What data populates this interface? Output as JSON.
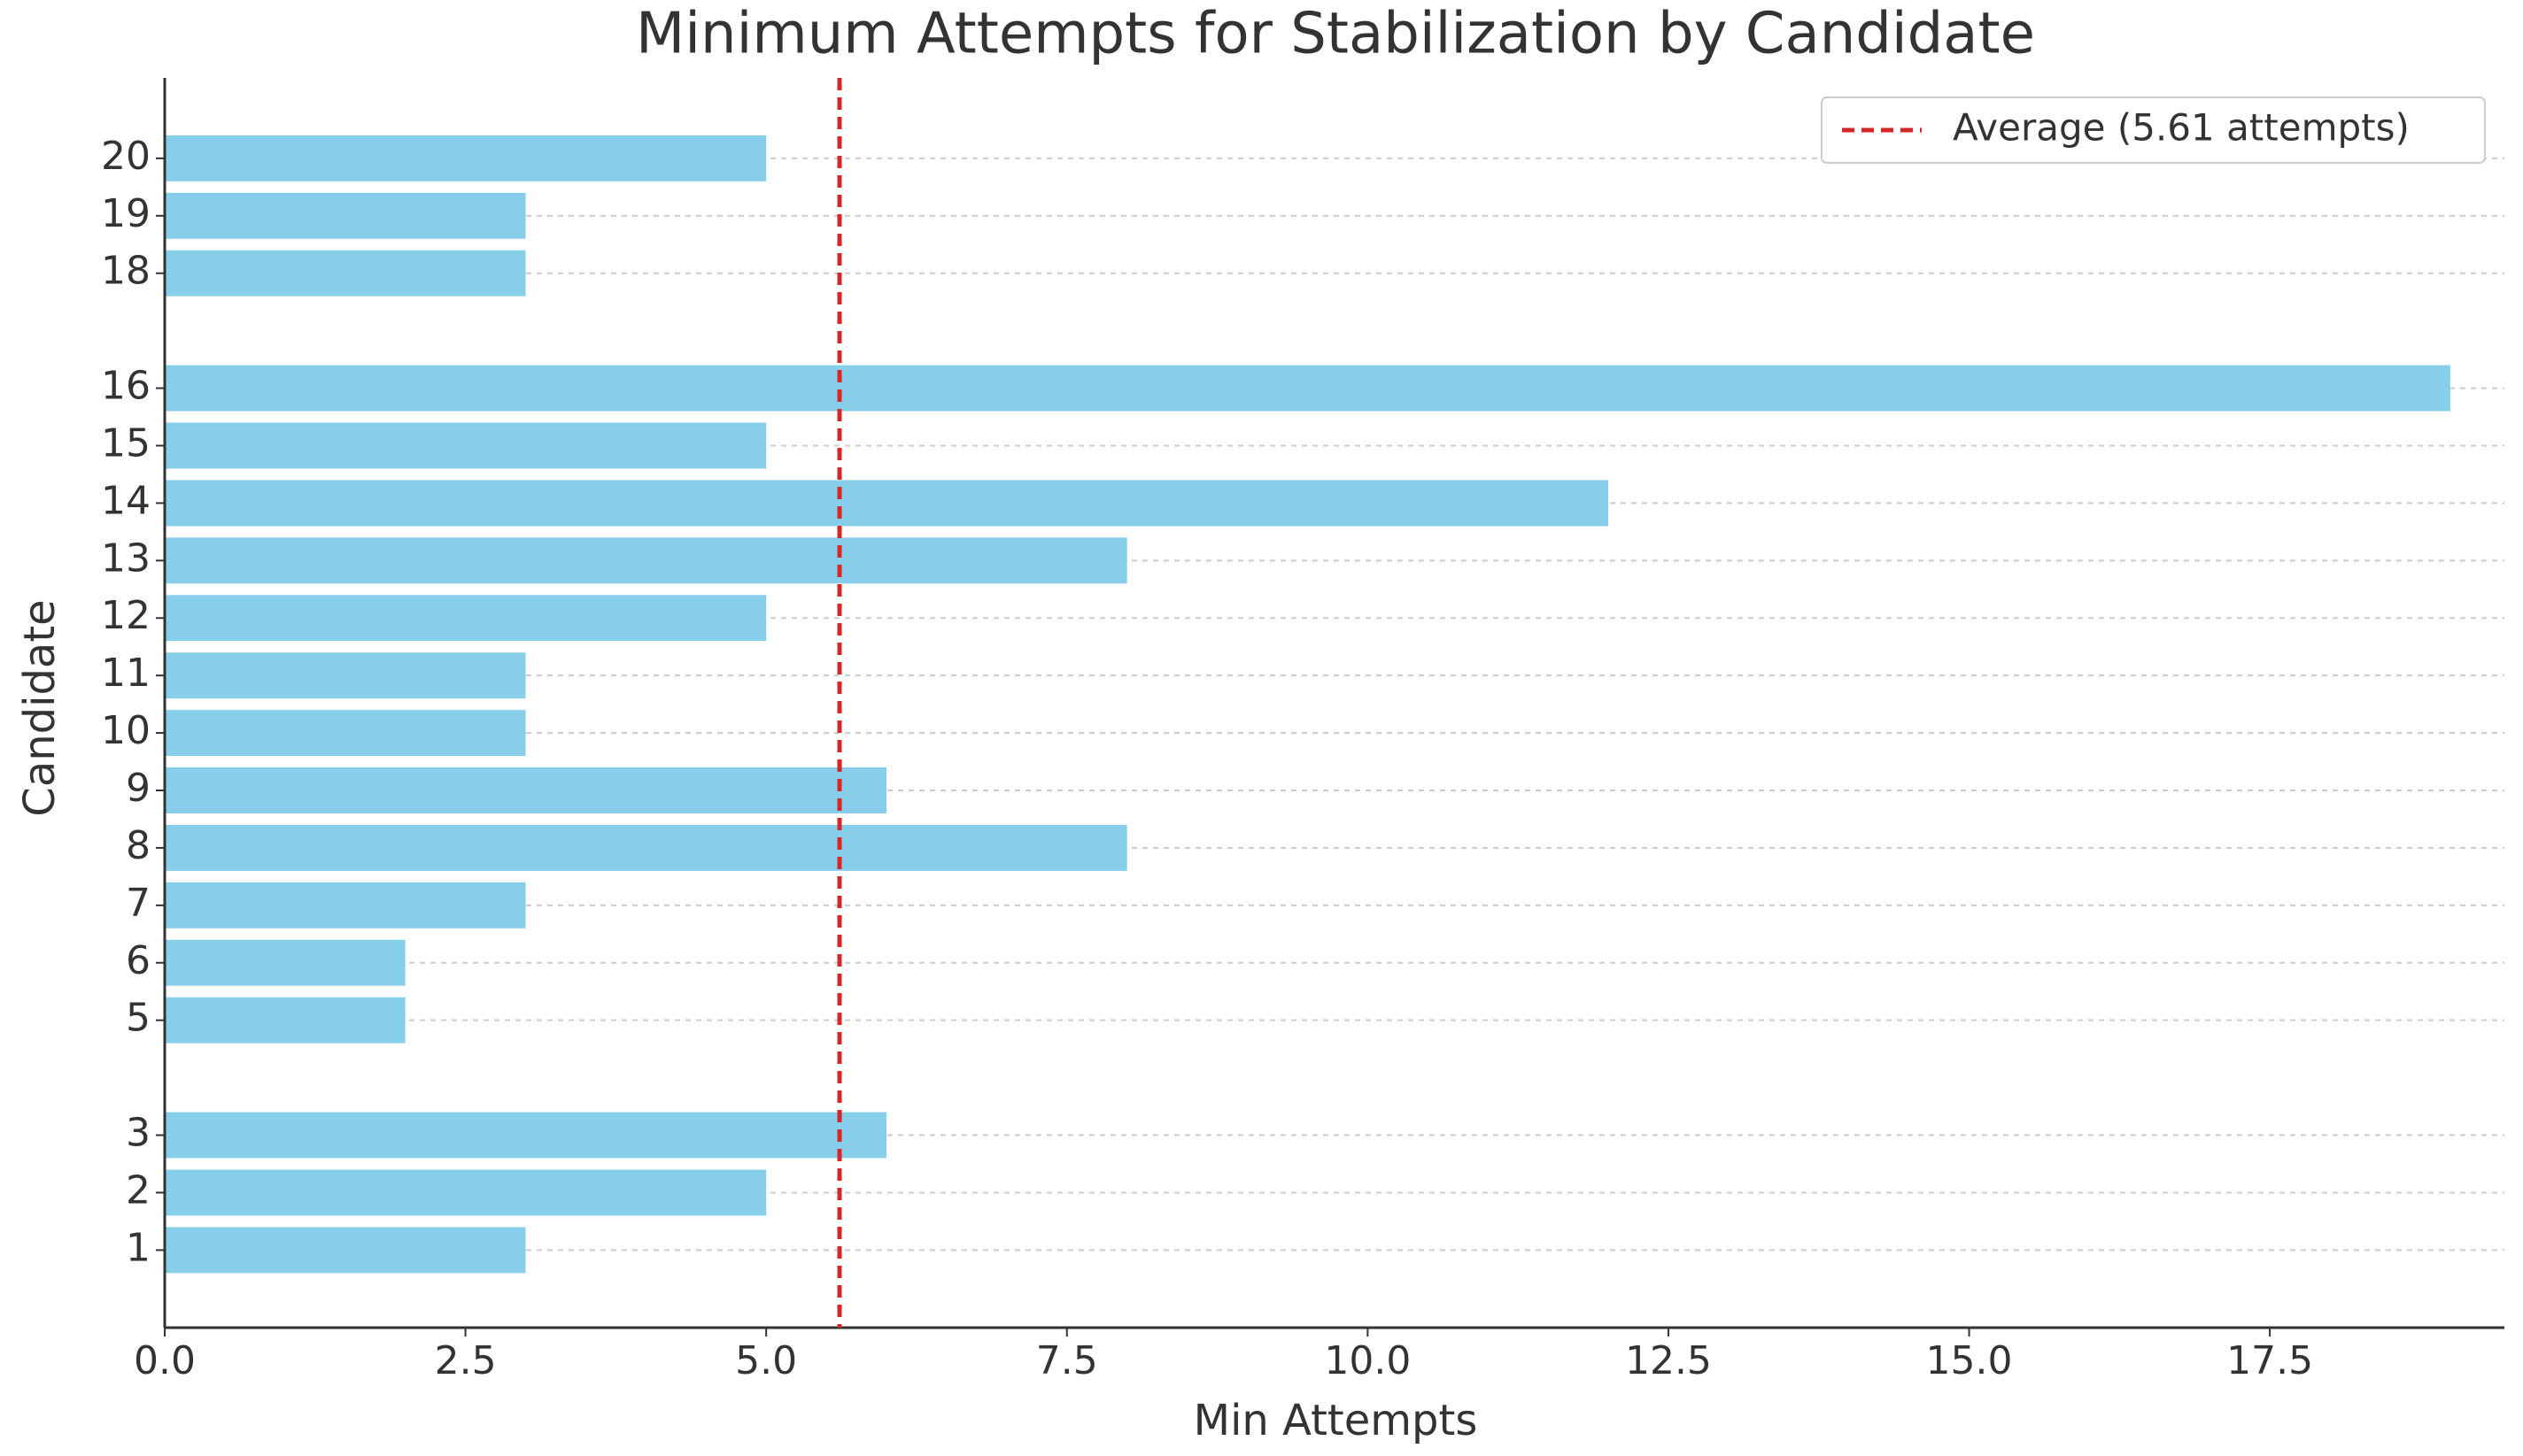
{
  "chart_data": {
    "type": "barh",
    "title": "Minimum Attempts for Stabilization by Candidate",
    "x_label": "Min Attempts",
    "y_label": "Candidate",
    "y": [
      1,
      2,
      3,
      5,
      6,
      7,
      8,
      9,
      10,
      11,
      12,
      13,
      14,
      15,
      16,
      18,
      19,
      20
    ],
    "values": [
      3,
      5,
      6,
      2,
      2,
      3,
      8,
      6,
      3,
      3,
      5,
      8,
      12,
      5,
      19,
      3,
      3,
      5
    ],
    "color": "#87ceeb",
    "xlim": [
      0,
      19.45
    ],
    "xticks": [
      {
        "value": 0,
        "label": "0.0"
      },
      {
        "value": 2.5,
        "label": "2.5"
      },
      {
        "value": 5,
        "label": "5.0"
      },
      {
        "value": 7.5,
        "label": "7.5"
      },
      {
        "value": 10,
        "label": "10.0"
      },
      {
        "value": 12.5,
        "label": "12.5"
      },
      {
        "value": 15,
        "label": "15.0"
      },
      {
        "value": 17.5,
        "label": "17.5"
      }
    ],
    "ylim": [
      -0.35,
      21.4
    ],
    "yticks": [
      1,
      2,
      3,
      5,
      6,
      7,
      8,
      9,
      10,
      11,
      12,
      13,
      14,
      15,
      16,
      18,
      19,
      20
    ],
    "grid": true,
    "average": {
      "value": 5.61,
      "label": "Average (5.61 attempts)",
      "color": "#d62728"
    },
    "legend": "upper right"
  }
}
